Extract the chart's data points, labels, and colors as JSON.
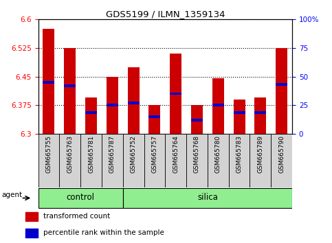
{
  "title": "GDS5199 / ILMN_1359134",
  "samples": [
    "GSM665755",
    "GSM665763",
    "GSM665781",
    "GSM665787",
    "GSM665752",
    "GSM665757",
    "GSM665764",
    "GSM665768",
    "GSM665780",
    "GSM665783",
    "GSM665789",
    "GSM665790"
  ],
  "transformed_count": [
    6.575,
    6.525,
    6.395,
    6.45,
    6.475,
    6.375,
    6.51,
    6.375,
    6.445,
    6.39,
    6.395,
    6.525
  ],
  "percentile_rank": [
    6.435,
    6.425,
    6.355,
    6.375,
    6.38,
    6.345,
    6.405,
    6.335,
    6.375,
    6.355,
    6.355,
    6.43
  ],
  "ylim_left": [
    6.3,
    6.6
  ],
  "ylim_right": [
    0,
    100
  ],
  "yticks_left": [
    6.3,
    6.375,
    6.45,
    6.525,
    6.6
  ],
  "yticks_right": [
    0,
    25,
    50,
    75,
    100
  ],
  "ytick_labels_left": [
    "6.3",
    "6.375",
    "6.45",
    "6.525",
    "6.6"
  ],
  "ytick_labels_right": [
    "0",
    "25",
    "50",
    "75",
    "100%"
  ],
  "control_count": 4,
  "silica_count": 8,
  "group_color": "#90ee90",
  "bar_color": "#cc0000",
  "percentile_color": "#0000cc",
  "bar_width": 0.55,
  "background_color": "#ffffff",
  "plot_bg_color": "#ffffff",
  "tick_bg_color": "#d3d3d3",
  "agent_label": "agent",
  "legend_items": [
    "transformed count",
    "percentile rank within the sample"
  ]
}
